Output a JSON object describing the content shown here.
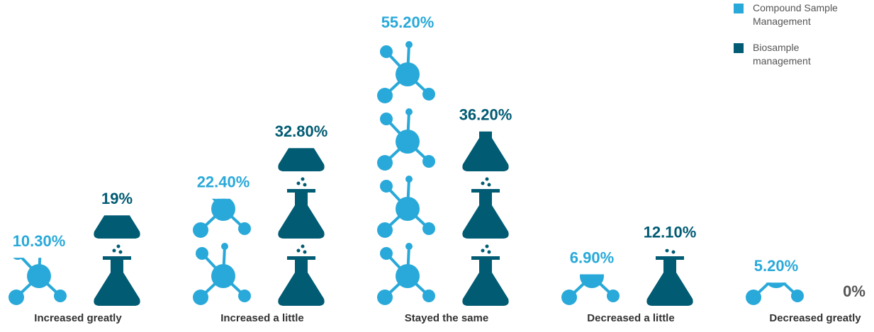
{
  "chart_data": {
    "type": "pictograph",
    "categories": [
      "Increased greatly",
      "Increased a little",
      "Stayed the same",
      "Decreased a little",
      "Decreased greatly"
    ],
    "series": [
      {
        "name": "Compound Sample Management",
        "color": "#29a9d9",
        "values": [
          10.3,
          22.4,
          55.2,
          6.9,
          5.2
        ],
        "value_labels": [
          "10.30%",
          "22.40%",
          "55.20%",
          "6.90%",
          "5.20%"
        ]
      },
      {
        "name": "Biosample management",
        "color": "#005b73",
        "values": [
          19,
          32.8,
          36.2,
          12.1,
          0
        ],
        "value_labels": [
          "19%",
          "32.80%",
          "36.20%",
          "12.10%",
          "0%"
        ]
      }
    ],
    "legend": "top-right"
  }
}
